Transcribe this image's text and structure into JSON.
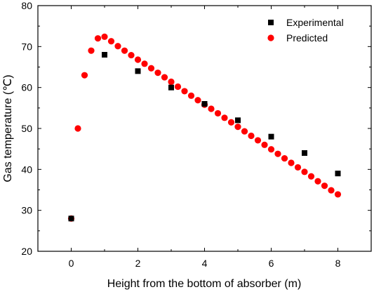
{
  "chart_data": {
    "type": "scatter",
    "xlabel": "Height from the bottom of absorber (m)",
    "ylabel": "Gas temperature (℃)",
    "xlim": [
      -1,
      9
    ],
    "ylim": [
      20,
      80
    ],
    "xticks": [
      0,
      2,
      4,
      6,
      8
    ],
    "yticks": [
      20,
      30,
      40,
      50,
      60,
      70,
      80
    ],
    "grid": false,
    "legend_position": "top-right",
    "series": [
      {
        "name": "Experimental",
        "marker": "square",
        "color": "#000000",
        "x": [
          0,
          1,
          2,
          3,
          4,
          5,
          6,
          7,
          8
        ],
        "y": [
          28,
          68,
          64,
          60,
          56,
          52,
          48,
          44,
          39
        ]
      },
      {
        "name": "Predicted",
        "marker": "circle",
        "color": "#ff0000",
        "x": [
          0,
          0.2,
          0.4,
          0.6,
          0.8,
          1.0,
          1.2,
          1.4,
          1.6,
          1.8,
          2.0,
          2.2,
          2.4,
          2.6,
          2.8,
          3.0,
          3.2,
          3.4,
          3.6,
          3.8,
          4.0,
          4.2,
          4.4,
          4.6,
          4.8,
          5.0,
          5.2,
          5.4,
          5.6,
          5.8,
          6.0,
          6.2,
          6.4,
          6.6,
          6.8,
          7.0,
          7.2,
          7.4,
          7.6,
          7.8,
          8.0
        ],
        "y": [
          28,
          50,
          63,
          69,
          72,
          72.4,
          71.3,
          70.1,
          69.0,
          67.9,
          66.8,
          65.8,
          64.7,
          63.6,
          62.5,
          61.4,
          60.2,
          59.1,
          58.0,
          56.9,
          55.8,
          54.8,
          53.7,
          52.6,
          51.5,
          50.4,
          49.3,
          48.2,
          47.1,
          46.0,
          44.9,
          43.8,
          42.7,
          41.6,
          40.5,
          39.4,
          38.3,
          37.1,
          36.0,
          34.9,
          33.9
        ]
      }
    ]
  }
}
